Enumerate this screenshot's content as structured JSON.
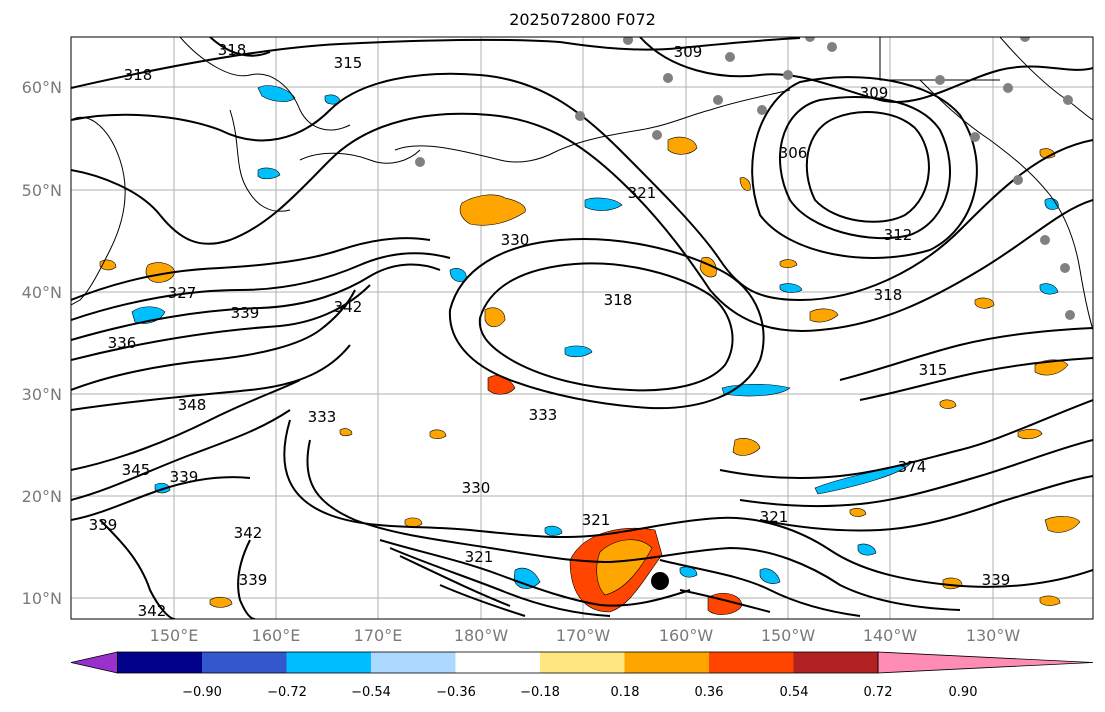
{
  "title": "2025072800 F072",
  "lat_labels": [
    "60°N",
    "50°N",
    "40°N",
    "30°N",
    "20°N",
    "10°N"
  ],
  "lon_labels": [
    "150°E",
    "160°E",
    "170°E",
    "180°W",
    "170°W",
    "160°W",
    "150°W",
    "140°W",
    "130°W"
  ],
  "contour_labels": [
    "318",
    "318",
    "315",
    "309",
    "309",
    "306",
    "312",
    "318",
    "321",
    "330",
    "318",
    "315",
    "327",
    "339",
    "336",
    "342",
    "348",
    "333",
    "333",
    "345",
    "339",
    "339",
    "330",
    "321",
    "321",
    "321",
    "342",
    "339",
    "342",
    "339",
    "374"
  ],
  "colorbar": {
    "tick_labels": [
      "−0.90",
      "−0.72",
      "−0.54",
      "−0.36",
      "−0.18",
      "0.18",
      "0.36",
      "0.54",
      "0.72",
      "0.90"
    ],
    "colors": [
      "#9932cc",
      "#00008b",
      "#3358cc",
      "#00bfff",
      "#add8ff",
      "#ffffff",
      "#ffe680",
      "#ffa500",
      "#ff4500",
      "#b22222",
      "#ff8cb4"
    ]
  },
  "colors": {
    "contour": "#000000",
    "grid": "#b0b0b0",
    "tick_text": "#7a7a7a",
    "station_marker": "#808080",
    "storm_center": "#000000"
  }
}
